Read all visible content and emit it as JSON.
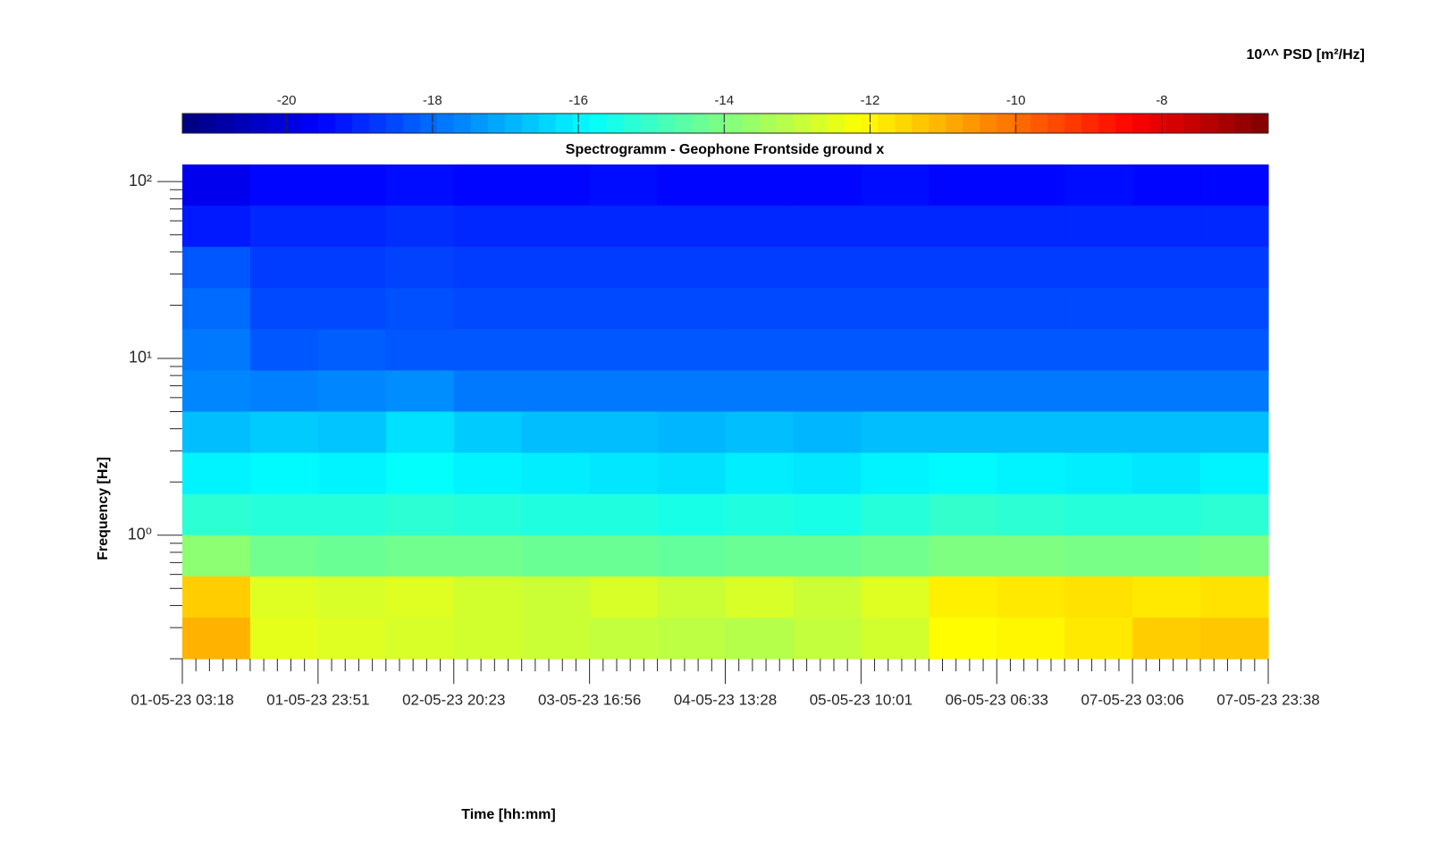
{
  "chart_data": {
    "type": "spectrogram",
    "title": "Spectrogramm - Geophone Frontside ground x",
    "xlabel": "Time [hh:mm]",
    "ylabel": "Frequency [Hz]",
    "colorbar_label": "10^^ PSD [m²/Hz]",
    "colormap": "jet",
    "log_y": true,
    "ylim": [
      0.2,
      125
    ],
    "yticks": [
      {
        "value": 1,
        "label": "10⁰"
      },
      {
        "value": 10,
        "label": "10¹"
      },
      {
        "value": 100,
        "label": "10²"
      }
    ],
    "yticks_minor": [
      0.2,
      0.3,
      0.4,
      0.5,
      0.6,
      0.7,
      0.8,
      0.9,
      2,
      3,
      4,
      5,
      6,
      7,
      8,
      9,
      20,
      30,
      40,
      50,
      60,
      70,
      80,
      90
    ],
    "xticks": [
      "01-05-23 03:18",
      "01-05-23 23:51",
      "02-05-23 20:23",
      "03-05-23 16:56",
      "04-05-23 13:28",
      "05-05-23 10:01",
      "06-05-23 06:33",
      "07-05-23 03:06",
      "07-05-23 23:38"
    ],
    "clim": [
      -21.43,
      -6.54
    ],
    "cticks": [
      -20,
      -18,
      -16,
      -14,
      -12,
      -10,
      -8
    ],
    "z": [
      [
        -19.8,
        -19.5,
        -19.5,
        -19.4,
        -19.5,
        -19.5,
        -19.4,
        -19.5,
        -19.5,
        -19.5,
        -19.4,
        -19.5,
        -19.5,
        -19.4,
        -19.5,
        -19.5
      ],
      [
        -19.2,
        -19.0,
        -19.0,
        -18.9,
        -19.0,
        -19.0,
        -19.0,
        -19.0,
        -19.0,
        -19.0,
        -19.0,
        -19.0,
        -19.0,
        -19.0,
        -19.0,
        -19.0
      ],
      [
        -18.3,
        -18.7,
        -18.7,
        -18.6,
        -18.7,
        -18.7,
        -18.7,
        -18.7,
        -18.7,
        -18.7,
        -18.7,
        -18.7,
        -18.7,
        -18.7,
        -18.7,
        -18.7
      ],
      [
        -18.0,
        -18.5,
        -18.5,
        -18.4,
        -18.5,
        -18.5,
        -18.5,
        -18.5,
        -18.5,
        -18.5,
        -18.5,
        -18.5,
        -18.5,
        -18.5,
        -18.5,
        -18.5
      ],
      [
        -17.8,
        -18.3,
        -18.2,
        -18.3,
        -18.3,
        -18.3,
        -18.3,
        -18.3,
        -18.3,
        -18.3,
        -18.3,
        -18.3,
        -18.3,
        -18.3,
        -18.3,
        -18.3
      ],
      [
        -17.6,
        -17.7,
        -17.6,
        -17.5,
        -17.8,
        -17.8,
        -17.8,
        -17.8,
        -17.8,
        -17.8,
        -17.8,
        -17.8,
        -17.8,
        -17.8,
        -17.8,
        -17.8
      ],
      [
        -16.8,
        -16.6,
        -16.7,
        -16.3,
        -16.6,
        -16.8,
        -16.8,
        -16.9,
        -16.8,
        -16.9,
        -16.8,
        -16.8,
        -16.8,
        -16.8,
        -16.8,
        -16.8
      ],
      [
        -16.0,
        -15.9,
        -16.0,
        -15.8,
        -16.0,
        -16.1,
        -16.2,
        -16.3,
        -16.1,
        -16.2,
        -16.0,
        -15.9,
        -16.0,
        -16.1,
        -16.2,
        -16.0
      ],
      [
        -15.2,
        -15.3,
        -15.3,
        -15.2,
        -15.3,
        -15.4,
        -15.4,
        -15.5,
        -15.4,
        -15.5,
        -15.3,
        -15.1,
        -15.2,
        -15.3,
        -15.3,
        -15.2
      ],
      [
        -13.8,
        -14.2,
        -14.3,
        -14.2,
        -14.2,
        -14.3,
        -14.3,
        -14.4,
        -14.3,
        -14.3,
        -14.2,
        -14.0,
        -14.0,
        -14.1,
        -14.1,
        -14.0
      ],
      [
        -11.4,
        -12.6,
        -12.7,
        -12.6,
        -12.8,
        -12.9,
        -12.7,
        -12.9,
        -12.7,
        -12.9,
        -12.6,
        -11.9,
        -11.8,
        -11.7,
        -11.8,
        -11.7
      ],
      [
        -11.0,
        -12.5,
        -12.6,
        -12.7,
        -12.8,
        -12.9,
        -13.0,
        -13.1,
        -13.2,
        -13.0,
        -12.8,
        -12.1,
        -12.0,
        -11.8,
        -11.4,
        -11.3
      ]
    ]
  }
}
